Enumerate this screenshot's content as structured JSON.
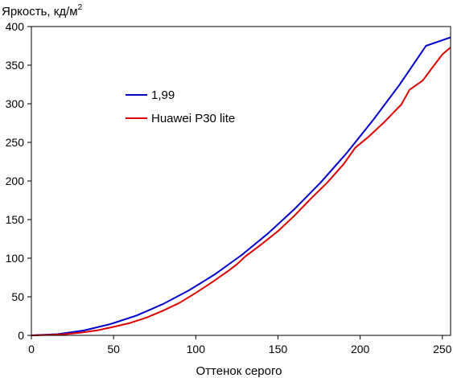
{
  "chart_data": {
    "type": "line",
    "title": "",
    "xlabel": "Оттенок серого",
    "ylabel_main": "Яркость, кд/м",
    "ylabel_sup": "2",
    "xlim": [
      0,
      255
    ],
    "ylim": [
      0,
      400
    ],
    "x_ticks": [
      0,
      50,
      100,
      150,
      200,
      250
    ],
    "y_ticks": [
      0,
      50,
      100,
      150,
      200,
      250,
      300,
      350,
      400
    ],
    "grid": false,
    "legend_position": "upper-left",
    "series": [
      {
        "name": "1,99",
        "color": "#0000cc",
        "x": [
          0,
          16,
          32,
          48,
          64,
          80,
          96,
          112,
          128,
          144,
          160,
          176,
          192,
          208,
          224,
          240,
          255
        ],
        "y": [
          0.0,
          1.6,
          6.4,
          14.6,
          25.7,
          40.5,
          58.4,
          79.6,
          104.2,
          132.1,
          163.5,
          198.1,
          236.7,
          279.3,
          324.8,
          375.0,
          386.0
        ]
      },
      {
        "name": "Huawei P30 lite",
        "color": "#dd0000",
        "x": [
          0,
          10,
          20,
          30,
          40,
          50,
          60,
          70,
          80,
          90,
          100,
          110,
          120,
          125,
          130,
          140,
          150,
          160,
          165,
          170,
          180,
          190,
          197,
          205,
          215,
          225,
          230,
          238,
          245,
          250,
          255
        ],
        "y": [
          0,
          0.5,
          1.5,
          3.5,
          6.5,
          11,
          16,
          23,
          32,
          42,
          55,
          69,
          84,
          92,
          102,
          118,
          135,
          155,
          166,
          177,
          198,
          222,
          243,
          257,
          277,
          299,
          318,
          330,
          350,
          364,
          373
        ]
      }
    ]
  }
}
